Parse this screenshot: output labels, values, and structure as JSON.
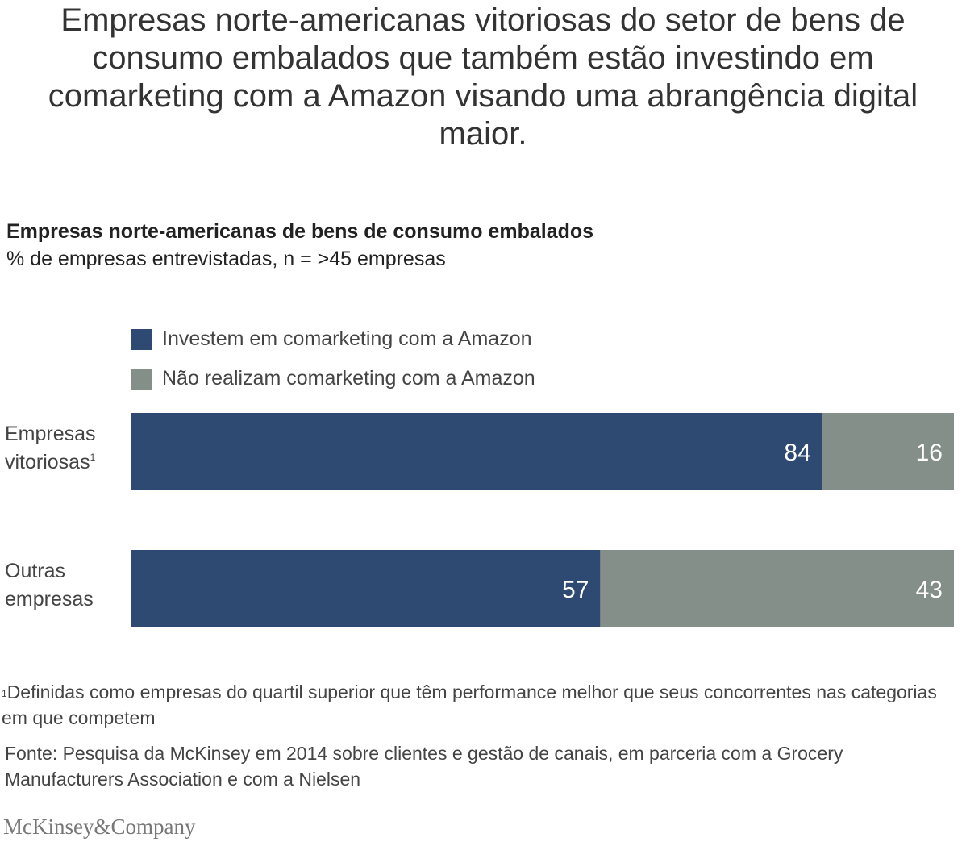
{
  "headline": "Empresas norte-americanas vitoriosas do setor de bens de consumo embalados que também estão investindo em comarketing com a Amazon visando uma abrangência digital maior.",
  "chart_data": {
    "type": "bar",
    "orientation": "horizontal",
    "stacked": true,
    "title": "Empresas norte-americanas de bens de consumo embalados",
    "subtitle": "% de empresas entrevistadas, n = >45 empresas",
    "categories": [
      "Empresas vitoriosas",
      "Outras empresas"
    ],
    "category_footnote_marks": [
      "1",
      ""
    ],
    "series": [
      {
        "name": "Investem em comarketing com a Amazon",
        "values": [
          84,
          57
        ],
        "color": "#2e4a72"
      },
      {
        "name": "Não realizam comarketing com a Amazon",
        "values": [
          16,
          43
        ],
        "color": "#858f89"
      }
    ],
    "xlim": [
      0,
      100
    ],
    "grid": false,
    "legend_position": "top-left"
  },
  "footnote": {
    "mark": "1",
    "text": "Definidas como empresas do quartil superior que têm performance melhor que seus concorrentes nas categorias em que competem"
  },
  "source": "Fonte: Pesquisa da McKinsey em 2014 sobre clientes e gestão de canais, em parceria com a Grocery Manufacturers Association e com a Nielsen",
  "brand": "McKinsey&Company"
}
